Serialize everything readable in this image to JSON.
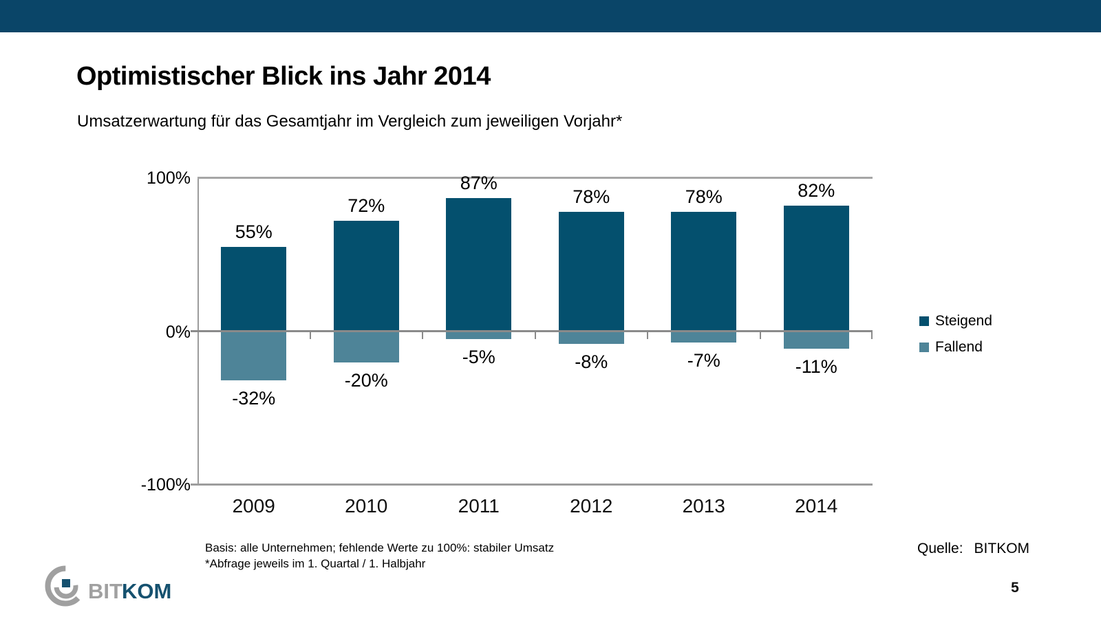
{
  "slide": {
    "title": "Optimistischer Blick ins Jahr 2014",
    "subtitle": "Umsatzerwartung für das Gesamtjahr im Vergleich zum jeweiligen Vorjahr*",
    "footnote_line1": "Basis: alle Unternehmen; fehlende Werte zu 100%: stabiler Umsatz",
    "footnote_line2": "*Abfrage jeweils im 1. Quartal / 1. Halbjahr",
    "source_prefix": "Quelle:",
    "source_value": "BITKOM",
    "page_number": "5"
  },
  "logo": {
    "text_grey": "BIT",
    "text_blue": "KOM"
  },
  "colors": {
    "banner": "#0a4568",
    "bar_steigend": "#04506e",
    "bar_fallend": "#4e8498",
    "axis_line": "#9c9c9c",
    "zero_line": "#8a8a8a",
    "logo_grey": "#a0a0a0",
    "logo_blue": "#15516f"
  },
  "chart_data": {
    "type": "bar",
    "title": "Optimistischer Blick ins Jahr 2014",
    "subtitle": "Umsatzerwartung für das Gesamtjahr im Vergleich zum jeweiligen Vorjahr*",
    "categories": [
      "2009",
      "2010",
      "2011",
      "2012",
      "2013",
      "2014"
    ],
    "series": [
      {
        "name": "Steigend",
        "color": "#04506e",
        "values": [
          55,
          72,
          87,
          78,
          78,
          82
        ]
      },
      {
        "name": "Fallend",
        "color": "#4e8498",
        "values": [
          -32,
          -20,
          -5,
          -8,
          -7,
          -11
        ]
      }
    ],
    "value_label_suffix": "%",
    "ylim": [
      -100,
      100
    ],
    "y_ticks": [
      "100%",
      "0%",
      "-100%"
    ],
    "xlabel": "",
    "ylabel": "",
    "grid": false,
    "legend_position": "right"
  }
}
